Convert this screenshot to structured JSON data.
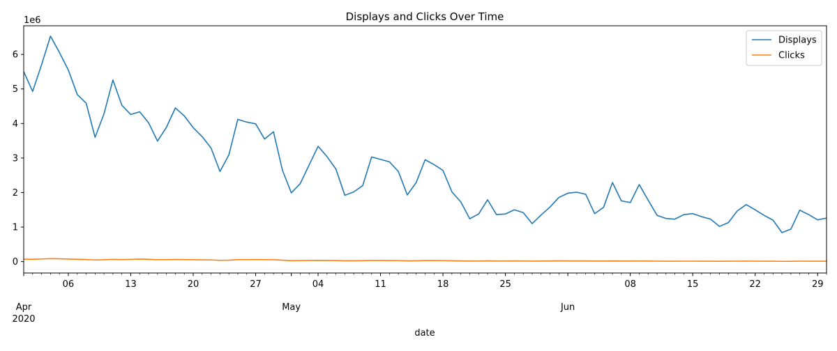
{
  "chart_data": {
    "type": "line",
    "title": "Displays and Clicks Over Time",
    "xlabel": "date",
    "ylabel": "",
    "y_offset_label": "1e6",
    "ylim": [
      -330000,
      6830000
    ],
    "yticks": [
      0,
      1000000,
      2000000,
      3000000,
      4000000,
      5000000,
      6000000
    ],
    "ytick_labels": [
      "0",
      "1",
      "2",
      "3",
      "4",
      "5",
      "6"
    ],
    "xlim": [
      "2020-04-01",
      "2020-06-30"
    ],
    "x_major_ticks": [
      {
        "date": "2020-04-06",
        "label": "06"
      },
      {
        "date": "2020-04-13",
        "label": "13"
      },
      {
        "date": "2020-04-20",
        "label": "20"
      },
      {
        "date": "2020-04-27",
        "label": "27"
      },
      {
        "date": "2020-05-04",
        "label": "04"
      },
      {
        "date": "2020-05-11",
        "label": "11"
      },
      {
        "date": "2020-05-18",
        "label": "18"
      },
      {
        "date": "2020-05-25",
        "label": "25"
      },
      {
        "date": "2020-06-08",
        "label": "08"
      },
      {
        "date": "2020-06-15",
        "label": "15"
      },
      {
        "date": "2020-06-22",
        "label": "22"
      },
      {
        "date": "2020-06-29",
        "label": "29"
      }
    ],
    "x_month_labels": [
      {
        "date": "2020-04-01",
        "label": "Apr",
        "sublabel": "2020"
      },
      {
        "date": "2020-05-01",
        "label": "May",
        "sublabel": ""
      },
      {
        "date": "2020-06-01",
        "label": "Jun",
        "sublabel": ""
      }
    ],
    "grid": false,
    "legend_position": "top-right",
    "series": [
      {
        "name": "Displays",
        "color": "#1f77b4",
        "points": [
          [
            "2020-04-01",
            5500000
          ],
          [
            "2020-04-02",
            4930000
          ],
          [
            "2020-04-03",
            5700000
          ],
          [
            "2020-04-04",
            6530000
          ],
          [
            "2020-04-05",
            6060000
          ],
          [
            "2020-04-06",
            5550000
          ],
          [
            "2020-04-07",
            4840000
          ],
          [
            "2020-04-08",
            4590000
          ],
          [
            "2020-04-09",
            3600000
          ],
          [
            "2020-04-10",
            4280000
          ],
          [
            "2020-04-11",
            5260000
          ],
          [
            "2020-04-12",
            4530000
          ],
          [
            "2020-04-13",
            4260000
          ],
          [
            "2020-04-14",
            4340000
          ],
          [
            "2020-04-15",
            4020000
          ],
          [
            "2020-04-16",
            3490000
          ],
          [
            "2020-04-17",
            3890000
          ],
          [
            "2020-04-18",
            4450000
          ],
          [
            "2020-04-19",
            4220000
          ],
          [
            "2020-04-20",
            3880000
          ],
          [
            "2020-04-21",
            3620000
          ],
          [
            "2020-04-22",
            3290000
          ],
          [
            "2020-04-23",
            2610000
          ],
          [
            "2020-04-24",
            3090000
          ],
          [
            "2020-04-25",
            4120000
          ],
          [
            "2020-04-26",
            4040000
          ],
          [
            "2020-04-27",
            3990000
          ],
          [
            "2020-04-28",
            3550000
          ],
          [
            "2020-04-29",
            3760000
          ],
          [
            "2020-04-30",
            2650000
          ],
          [
            "2020-05-01",
            1990000
          ],
          [
            "2020-05-02",
            2260000
          ],
          [
            "2020-05-03",
            2800000
          ],
          [
            "2020-05-04",
            3340000
          ],
          [
            "2020-05-05",
            3040000
          ],
          [
            "2020-05-06",
            2680000
          ],
          [
            "2020-05-07",
            1920000
          ],
          [
            "2020-05-08",
            2020000
          ],
          [
            "2020-05-09",
            2200000
          ],
          [
            "2020-05-10",
            3030000
          ],
          [
            "2020-05-11",
            2960000
          ],
          [
            "2020-05-12",
            2890000
          ],
          [
            "2020-05-13",
            2610000
          ],
          [
            "2020-05-14",
            1930000
          ],
          [
            "2020-05-15",
            2290000
          ],
          [
            "2020-05-16",
            2950000
          ],
          [
            "2020-05-17",
            2810000
          ],
          [
            "2020-05-18",
            2640000
          ],
          [
            "2020-05-19",
            2020000
          ],
          [
            "2020-05-20",
            1730000
          ],
          [
            "2020-05-21",
            1240000
          ],
          [
            "2020-05-22",
            1380000
          ],
          [
            "2020-05-23",
            1790000
          ],
          [
            "2020-05-24",
            1360000
          ],
          [
            "2020-05-25",
            1380000
          ],
          [
            "2020-05-26",
            1500000
          ],
          [
            "2020-05-27",
            1420000
          ],
          [
            "2020-05-28",
            1100000
          ],
          [
            "2020-05-29",
            1350000
          ],
          [
            "2020-05-30",
            1580000
          ],
          [
            "2020-05-31",
            1860000
          ],
          [
            "2020-06-01",
            1980000
          ],
          [
            "2020-06-02",
            2010000
          ],
          [
            "2020-06-03",
            1950000
          ],
          [
            "2020-06-04",
            1390000
          ],
          [
            "2020-06-05",
            1570000
          ],
          [
            "2020-06-06",
            2290000
          ],
          [
            "2020-06-07",
            1760000
          ],
          [
            "2020-06-08",
            1710000
          ],
          [
            "2020-06-09",
            2230000
          ],
          [
            "2020-06-10",
            1780000
          ],
          [
            "2020-06-11",
            1340000
          ],
          [
            "2020-06-12",
            1250000
          ],
          [
            "2020-06-13",
            1230000
          ],
          [
            "2020-06-14",
            1360000
          ],
          [
            "2020-06-15",
            1390000
          ],
          [
            "2020-06-16",
            1300000
          ],
          [
            "2020-06-17",
            1230000
          ],
          [
            "2020-06-18",
            1020000
          ],
          [
            "2020-06-19",
            1130000
          ],
          [
            "2020-06-20",
            1470000
          ],
          [
            "2020-06-21",
            1650000
          ],
          [
            "2020-06-22",
            1500000
          ],
          [
            "2020-06-23",
            1340000
          ],
          [
            "2020-06-24",
            1200000
          ],
          [
            "2020-06-25",
            840000
          ],
          [
            "2020-06-26",
            940000
          ],
          [
            "2020-06-27",
            1490000
          ],
          [
            "2020-06-28",
            1360000
          ],
          [
            "2020-06-29",
            1210000
          ],
          [
            "2020-06-30",
            1260000
          ]
        ]
      },
      {
        "name": "Clicks",
        "color": "#ff7f0e",
        "points": [
          [
            "2020-04-01",
            70000
          ],
          [
            "2020-04-02",
            68000
          ],
          [
            "2020-04-03",
            76000
          ],
          [
            "2020-04-04",
            88000
          ],
          [
            "2020-04-05",
            82000
          ],
          [
            "2020-04-06",
            74000
          ],
          [
            "2020-04-07",
            68000
          ],
          [
            "2020-04-08",
            62000
          ],
          [
            "2020-04-09",
            48000
          ],
          [
            "2020-04-10",
            55000
          ],
          [
            "2020-04-11",
            66000
          ],
          [
            "2020-04-12",
            60000
          ],
          [
            "2020-04-13",
            66000
          ],
          [
            "2020-04-14",
            72000
          ],
          [
            "2020-04-15",
            68000
          ],
          [
            "2020-04-16",
            54000
          ],
          [
            "2020-04-17",
            56000
          ],
          [
            "2020-04-18",
            62000
          ],
          [
            "2020-04-19",
            60000
          ],
          [
            "2020-04-20",
            54000
          ],
          [
            "2020-04-21",
            52000
          ],
          [
            "2020-04-22",
            48000
          ],
          [
            "2020-04-23",
            38000
          ],
          [
            "2020-04-24",
            42000
          ],
          [
            "2020-04-25",
            56000
          ],
          [
            "2020-04-26",
            58000
          ],
          [
            "2020-04-27",
            60000
          ],
          [
            "2020-04-28",
            56000
          ],
          [
            "2020-04-29",
            54000
          ],
          [
            "2020-04-30",
            42000
          ],
          [
            "2020-05-01",
            26000
          ],
          [
            "2020-05-02",
            28000
          ],
          [
            "2020-05-03",
            32000
          ],
          [
            "2020-05-04",
            36000
          ],
          [
            "2020-05-05",
            34000
          ],
          [
            "2020-05-06",
            30000
          ],
          [
            "2020-05-07",
            24000
          ],
          [
            "2020-05-08",
            24000
          ],
          [
            "2020-05-09",
            26000
          ],
          [
            "2020-05-10",
            32000
          ],
          [
            "2020-05-11",
            32000
          ],
          [
            "2020-05-12",
            30000
          ],
          [
            "2020-05-13",
            28000
          ],
          [
            "2020-05-14",
            22000
          ],
          [
            "2020-05-15",
            24000
          ],
          [
            "2020-05-16",
            30000
          ],
          [
            "2020-05-17",
            30000
          ],
          [
            "2020-05-18",
            28000
          ],
          [
            "2020-05-19",
            24000
          ],
          [
            "2020-05-20",
            20000
          ],
          [
            "2020-05-21",
            16000
          ],
          [
            "2020-05-22",
            18000
          ],
          [
            "2020-05-23",
            22000
          ],
          [
            "2020-05-24",
            18000
          ],
          [
            "2020-05-25",
            18000
          ],
          [
            "2020-05-26",
            20000
          ],
          [
            "2020-05-27",
            18000
          ],
          [
            "2020-05-28",
            14000
          ],
          [
            "2020-05-29",
            16000
          ],
          [
            "2020-05-30",
            20000
          ],
          [
            "2020-05-31",
            22000
          ],
          [
            "2020-06-01",
            20000
          ],
          [
            "2020-06-02",
            20000
          ],
          [
            "2020-06-03",
            19000
          ],
          [
            "2020-06-04",
            16000
          ],
          [
            "2020-06-05",
            16000
          ],
          [
            "2020-06-06",
            20000
          ],
          [
            "2020-06-07",
            16000
          ],
          [
            "2020-06-08",
            16000
          ],
          [
            "2020-06-09",
            18000
          ],
          [
            "2020-06-10",
            16000
          ],
          [
            "2020-06-11",
            13000
          ],
          [
            "2020-06-12",
            12000
          ],
          [
            "2020-06-13",
            12000
          ],
          [
            "2020-06-14",
            13000
          ],
          [
            "2020-06-15",
            13000
          ],
          [
            "2020-06-16",
            12000
          ],
          [
            "2020-06-17",
            12000
          ],
          [
            "2020-06-18",
            10000
          ],
          [
            "2020-06-19",
            11000
          ],
          [
            "2020-06-20",
            13000
          ],
          [
            "2020-06-21",
            14000
          ],
          [
            "2020-06-22",
            13000
          ],
          [
            "2020-06-23",
            12000
          ],
          [
            "2020-06-24",
            11000
          ],
          [
            "2020-06-25",
            8000
          ],
          [
            "2020-06-26",
            9000
          ],
          [
            "2020-06-27",
            13000
          ],
          [
            "2020-06-28",
            12000
          ],
          [
            "2020-06-29",
            11000
          ],
          [
            "2020-06-30",
            12000
          ]
        ]
      }
    ]
  }
}
